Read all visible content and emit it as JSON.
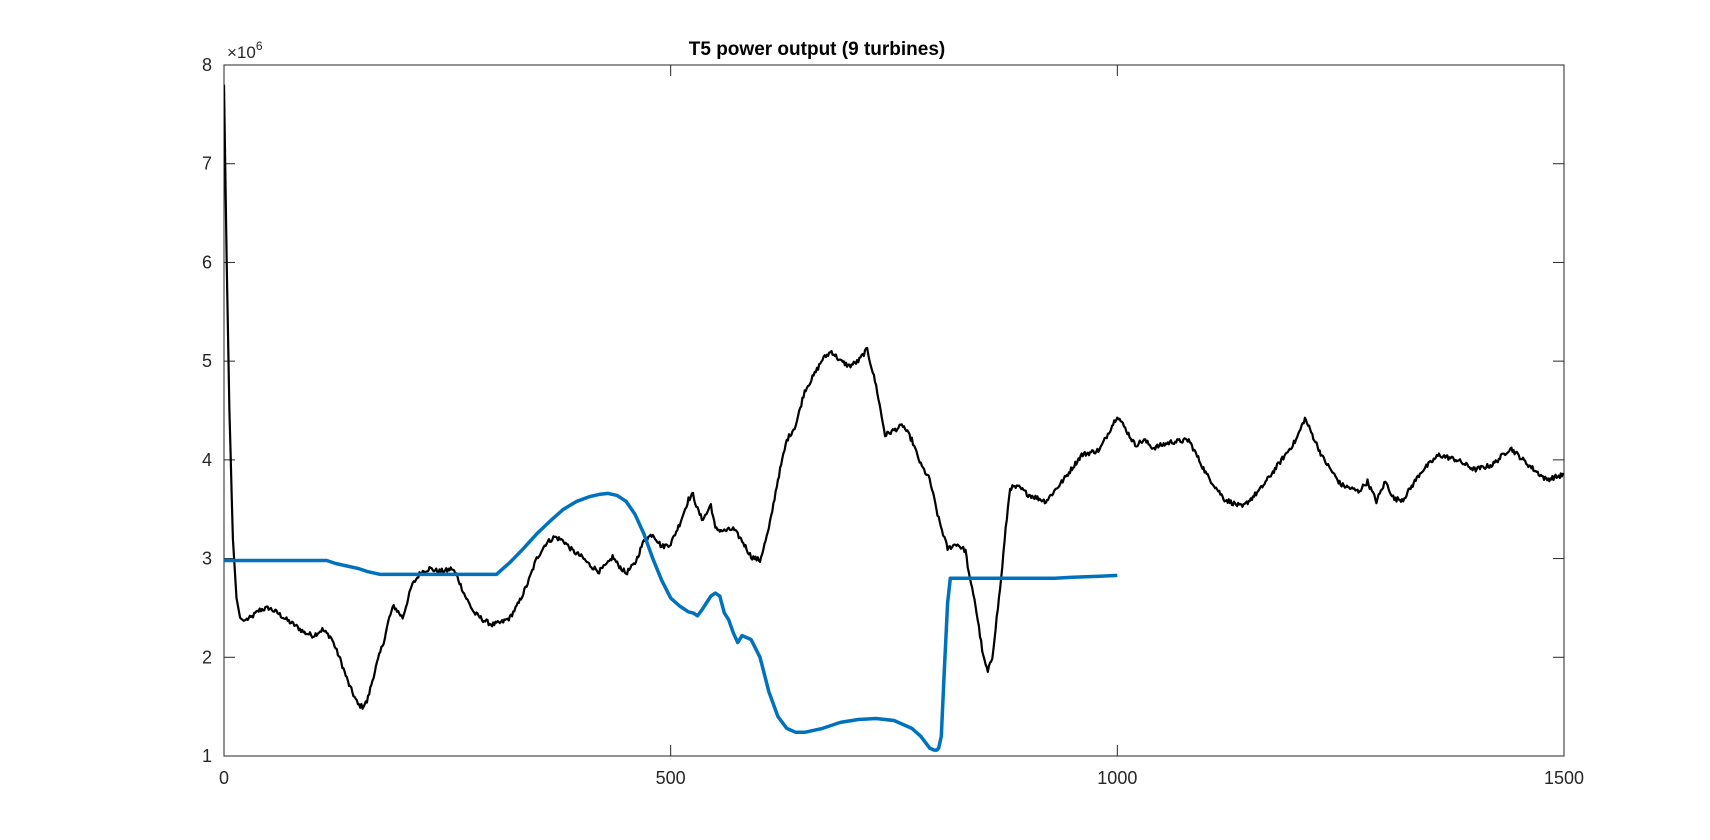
{
  "chart_data": {
    "type": "line",
    "title": "T5 power output (9 turbines)",
    "xlabel": "",
    "ylabel": "",
    "xlim": [
      0,
      1500
    ],
    "ylim": [
      1,
      8
    ],
    "y_multiplier": "×10",
    "y_multiplier_exponent": "6",
    "x_ticks": [
      0,
      500,
      1000,
      1500
    ],
    "x_tick_labels": [
      "0",
      "500",
      "1000",
      "1500"
    ],
    "y_ticks": [
      1,
      2,
      3,
      4,
      5,
      6,
      7,
      8
    ],
    "y_tick_labels": [
      "1",
      "2",
      "3",
      "4",
      "5",
      "6",
      "7",
      "8"
    ],
    "grid": false,
    "series": [
      {
        "color": "#000000",
        "noisy": true,
        "x": [
          0,
          3,
          6,
          10,
          14,
          18,
          22,
          30,
          40,
          50,
          60,
          70,
          80,
          90,
          100,
          110,
          120,
          130,
          140,
          150,
          155,
          160,
          170,
          180,
          185,
          190,
          200,
          210,
          220,
          230,
          240,
          250,
          255,
          260,
          270,
          280,
          290,
          300,
          310,
          320,
          330,
          340,
          350,
          360,
          370,
          380,
          390,
          400,
          410,
          420,
          430,
          435,
          440,
          450,
          460,
          470,
          480,
          490,
          500,
          510,
          520,
          525,
          530,
          535,
          540,
          545,
          550,
          560,
          570,
          580,
          590,
          600,
          610,
          620,
          630,
          640,
          650,
          660,
          670,
          680,
          690,
          700,
          710,
          720,
          730,
          740,
          750,
          760,
          770,
          780,
          790,
          800,
          810,
          820,
          830,
          835,
          840,
          850,
          855,
          860,
          865,
          870,
          875,
          880,
          890,
          900,
          920,
          940,
          960,
          980,
          1000,
          1010,
          1020,
          1030,
          1040,
          1060,
          1080,
          1100,
          1120,
          1140,
          1160,
          1180,
          1200,
          1210,
          1230,
          1250,
          1270,
          1280,
          1290,
          1300,
          1310,
          1320,
          1340,
          1360,
          1380,
          1400,
          1420,
          1440,
          1460,
          1480,
          1500
        ],
        "y": [
          7.8,
          6.0,
          4.5,
          3.2,
          2.6,
          2.4,
          2.37,
          2.4,
          2.48,
          2.5,
          2.45,
          2.38,
          2.32,
          2.25,
          2.22,
          2.28,
          2.2,
          1.98,
          1.72,
          1.52,
          1.5,
          1.55,
          1.9,
          2.2,
          2.4,
          2.52,
          2.4,
          2.72,
          2.86,
          2.9,
          2.87,
          2.88,
          2.9,
          2.84,
          2.62,
          2.45,
          2.38,
          2.33,
          2.35,
          2.4,
          2.55,
          2.75,
          3.0,
          3.15,
          3.22,
          3.18,
          3.08,
          3.02,
          2.93,
          2.87,
          2.95,
          3.02,
          2.95,
          2.85,
          2.95,
          3.18,
          3.25,
          3.12,
          3.15,
          3.35,
          3.6,
          3.65,
          3.5,
          3.4,
          3.45,
          3.55,
          3.3,
          3.28,
          3.3,
          3.18,
          3.02,
          2.98,
          3.3,
          3.8,
          4.2,
          4.35,
          4.7,
          4.85,
          5.02,
          5.1,
          5.0,
          4.95,
          5.0,
          5.12,
          4.75,
          4.25,
          4.3,
          4.35,
          4.2,
          3.95,
          3.8,
          3.4,
          3.1,
          3.15,
          3.08,
          2.78,
          2.6,
          2.0,
          1.85,
          2.0,
          2.4,
          2.8,
          3.3,
          3.72,
          3.72,
          3.65,
          3.58,
          3.8,
          4.05,
          4.1,
          4.45,
          4.3,
          4.15,
          4.2,
          4.12,
          4.18,
          4.2,
          3.85,
          3.6,
          3.52,
          3.7,
          3.95,
          4.2,
          4.42,
          4.02,
          3.75,
          3.68,
          3.78,
          3.58,
          3.78,
          3.6,
          3.6,
          3.88,
          4.05,
          4.0,
          3.9,
          3.95,
          4.12,
          3.95,
          3.8,
          3.85
        ]
      },
      {
        "color": "#0072BD",
        "noisy": false,
        "x": [
          0,
          40,
          80,
          115,
          125,
          135,
          150,
          160,
          175,
          200,
          250,
          305,
          310,
          320,
          335,
          350,
          365,
          380,
          395,
          410,
          420,
          430,
          440,
          450,
          460,
          470,
          480,
          490,
          500,
          510,
          520,
          525,
          530,
          535,
          540,
          545,
          550,
          555,
          560,
          565,
          570,
          575,
          580,
          590,
          600,
          610,
          620,
          630,
          640,
          650,
          670,
          690,
          710,
          730,
          750,
          770,
          780,
          790,
          795,
          798,
          800,
          803,
          806,
          810,
          813,
          830,
          860,
          900,
          930,
          950,
          980,
          1000
        ],
        "y": [
          2.98,
          2.98,
          2.98,
          2.98,
          2.95,
          2.93,
          2.9,
          2.87,
          2.84,
          2.84,
          2.84,
          2.84,
          2.88,
          2.96,
          3.1,
          3.25,
          3.38,
          3.5,
          3.58,
          3.63,
          3.65,
          3.66,
          3.64,
          3.58,
          3.45,
          3.25,
          3.0,
          2.78,
          2.6,
          2.52,
          2.46,
          2.45,
          2.42,
          2.48,
          2.55,
          2.62,
          2.65,
          2.62,
          2.45,
          2.38,
          2.25,
          2.15,
          2.22,
          2.18,
          2.0,
          1.65,
          1.4,
          1.28,
          1.24,
          1.24,
          1.28,
          1.34,
          1.37,
          1.38,
          1.36,
          1.28,
          1.2,
          1.08,
          1.06,
          1.06,
          1.08,
          1.2,
          1.8,
          2.55,
          2.8,
          2.8,
          2.8,
          2.8,
          2.8,
          2.81,
          2.82,
          2.83
        ]
      }
    ]
  }
}
